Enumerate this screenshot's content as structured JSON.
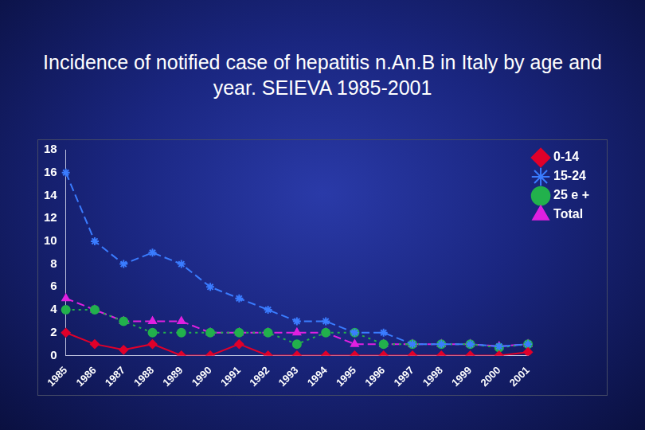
{
  "chart_data": {
    "type": "line",
    "title": "Incidence of notified case of hepatitis n.An.B in Italy by age and year. SEIEVA 1985-2001",
    "categories": [
      "1985",
      "1986",
      "1987",
      "1988",
      "1989",
      "1990",
      "1991",
      "1992",
      "1993",
      "1994",
      "1995",
      "1996",
      "1997",
      "1998",
      "1999",
      "2000",
      "2001"
    ],
    "series": [
      {
        "name": "0-14",
        "color": "#e0002a",
        "marker": "diamond",
        "line_style": "solid",
        "values": [
          2,
          1,
          0.5,
          1,
          0,
          0,
          1,
          0,
          0,
          0,
          0,
          0,
          0,
          0,
          0,
          0,
          0.3
        ]
      },
      {
        "name": "15-24",
        "color": "#3a7cff",
        "marker": "asterisk",
        "line_style": "dashed",
        "values": [
          16,
          10,
          8,
          9,
          8,
          6,
          5,
          4,
          3,
          3,
          2,
          2,
          1,
          1,
          1,
          0.8,
          1
        ]
      },
      {
        "name": "25 e +",
        "color": "#22b14c",
        "marker": "circle",
        "line_style": "dotted",
        "values": [
          4,
          4,
          3,
          2,
          2,
          2,
          2,
          2,
          1,
          2,
          2,
          1,
          1,
          1,
          1,
          0.7,
          1
        ]
      },
      {
        "name": "Total",
        "color": "#e020e0",
        "marker": "triangle",
        "line_style": "dashed",
        "values": [
          5,
          4,
          3,
          3,
          3,
          2,
          2,
          2,
          2,
          2,
          1,
          1,
          1,
          1,
          1,
          0.8,
          1
        ]
      }
    ],
    "ylim": [
      0,
      18
    ],
    "yticks": [
      0,
      2,
      4,
      6,
      8,
      10,
      12,
      14,
      16,
      18
    ],
    "grid": false,
    "legend": "top-right"
  }
}
